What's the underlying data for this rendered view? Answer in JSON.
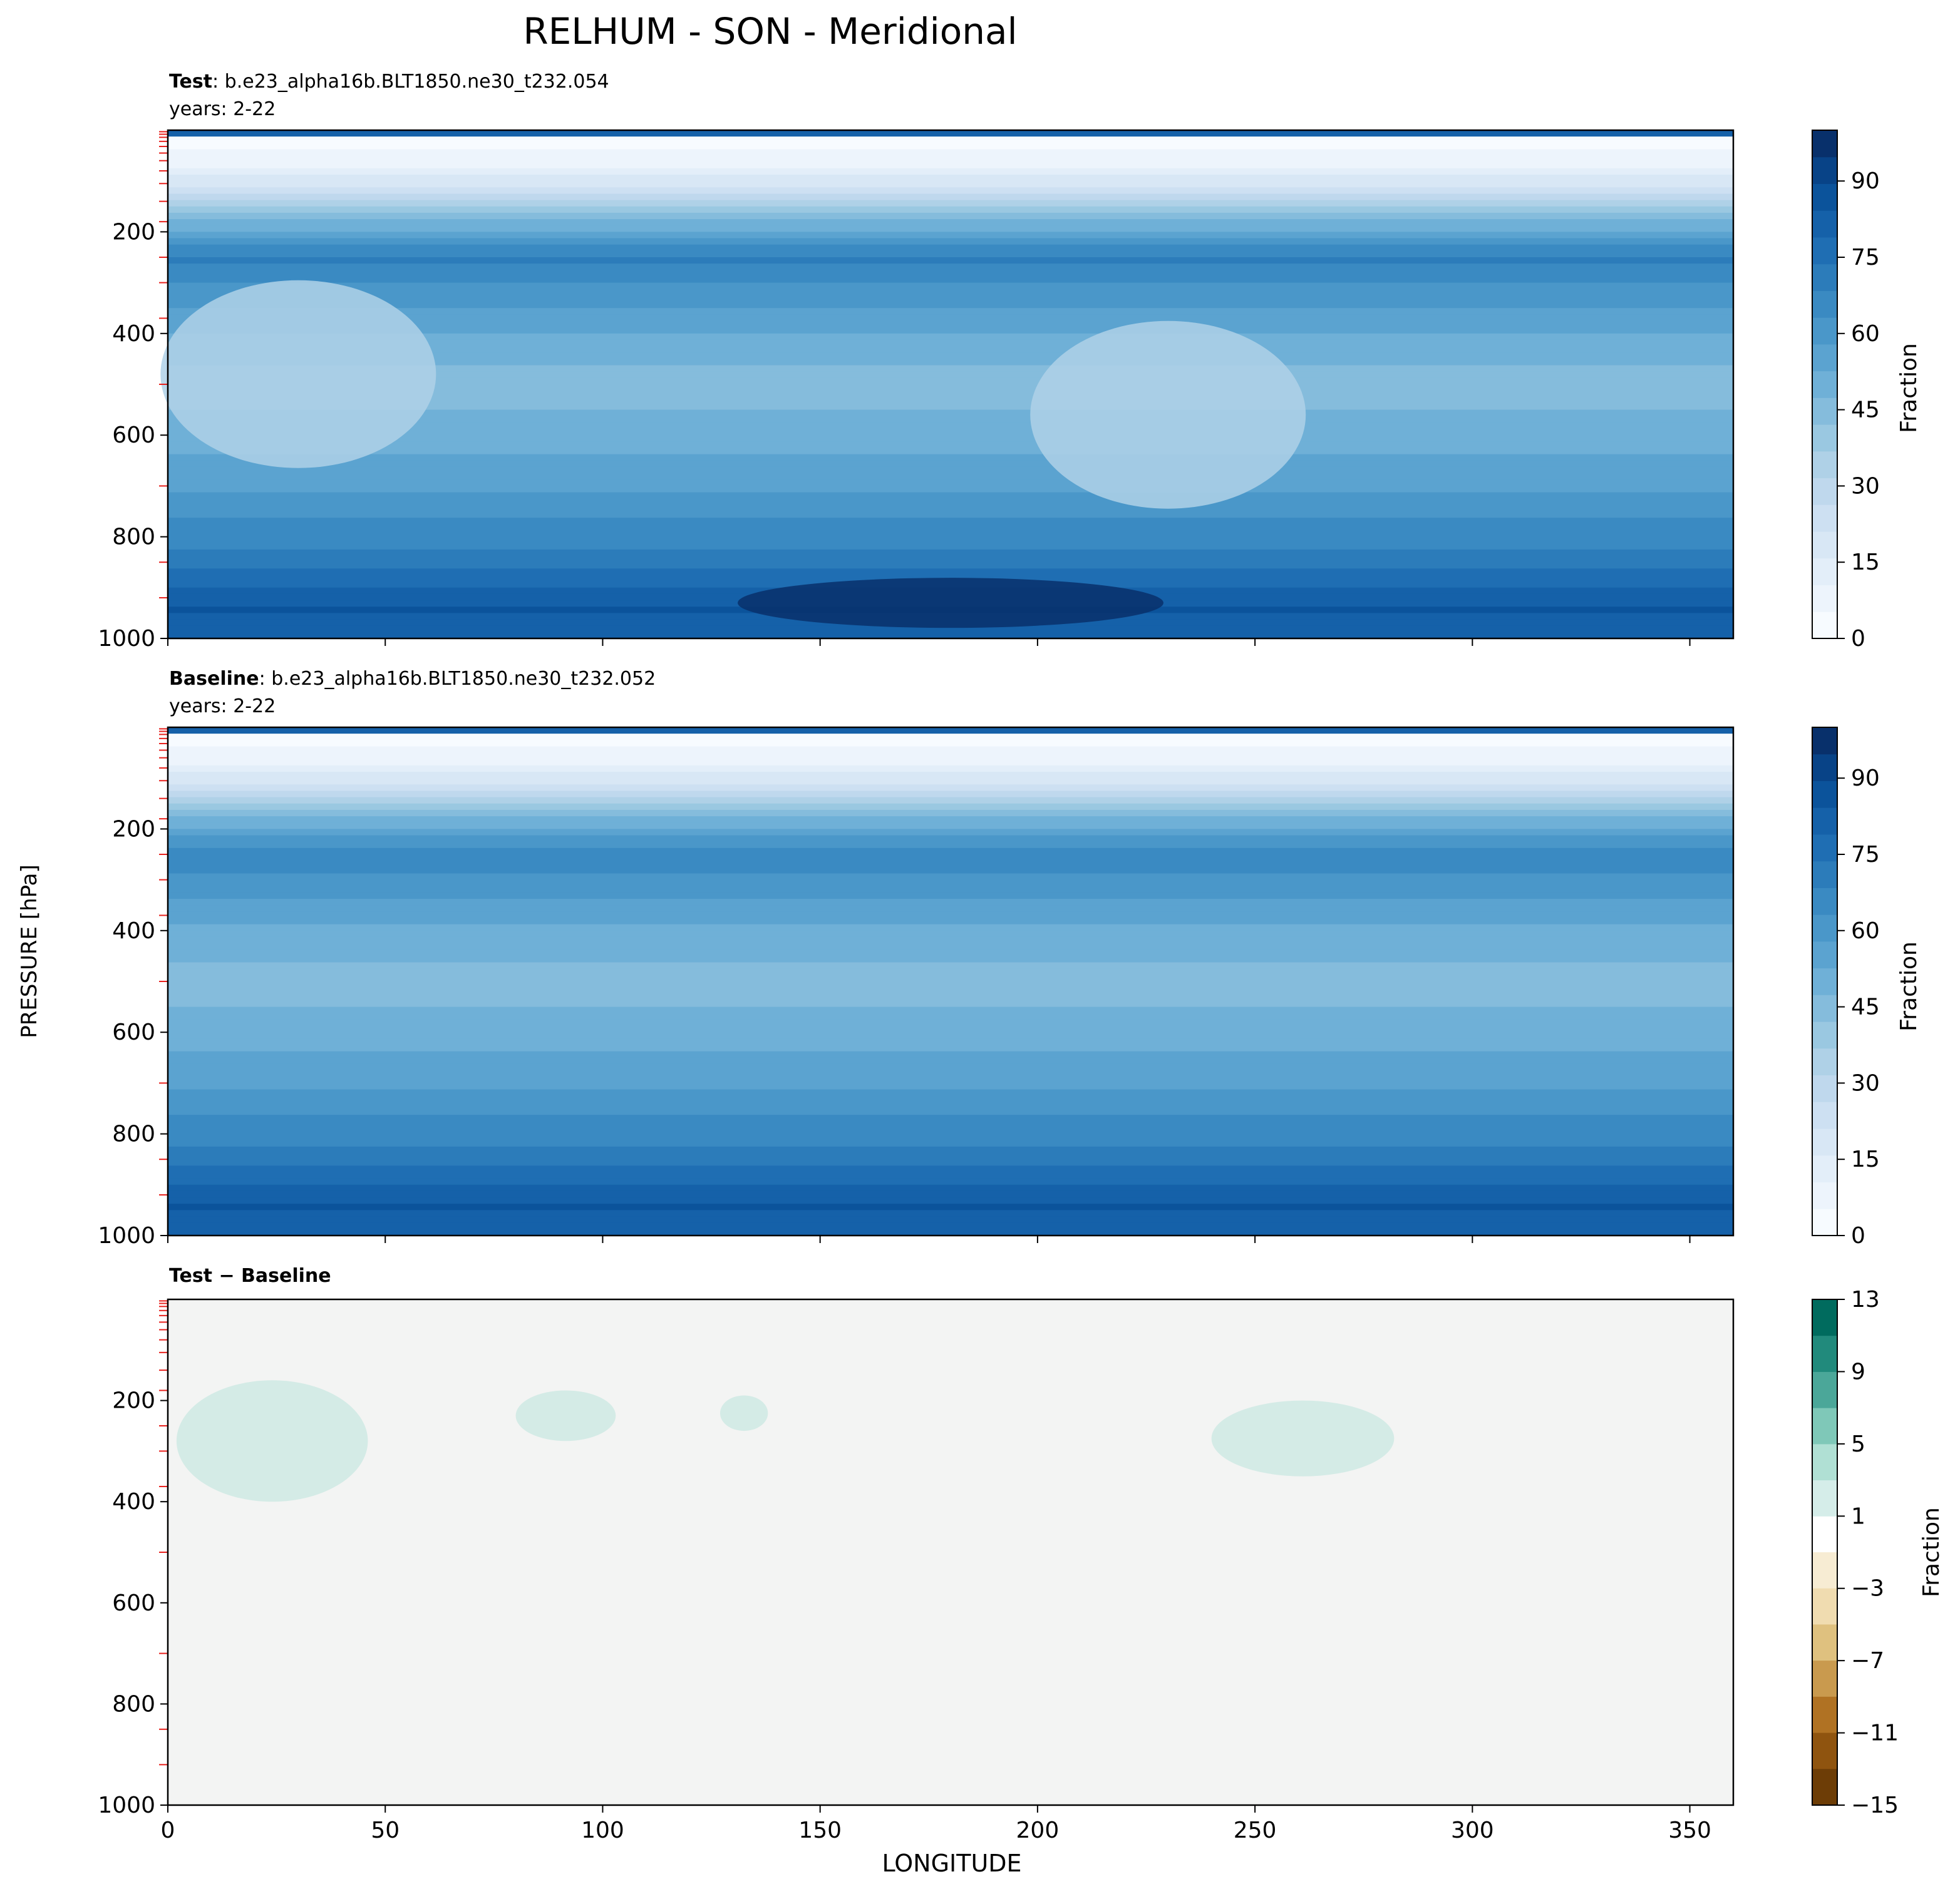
{
  "figure": {
    "title": "RELHUM - SON - Meridional",
    "ylabel": "PRESSURE [hPa]",
    "xlabel": "LONGITUDE"
  },
  "panels": [
    {
      "label_bold": "Test",
      "label_rest": ": b.e23_alpha16b.BLT1850.ne30_t232.054",
      "years": "years: 2-22",
      "colorbar_label": "Fraction",
      "colorbar_ticks": [
        "0",
        "15",
        "30",
        "45",
        "60",
        "75",
        "90"
      ]
    },
    {
      "label_bold": "Baseline",
      "label_rest": ": b.e23_alpha16b.BLT1850.ne30_t232.052",
      "years": "years: 2-22",
      "colorbar_label": "Fraction",
      "colorbar_ticks": [
        "0",
        "15",
        "30",
        "45",
        "60",
        "75",
        "90"
      ]
    },
    {
      "label_bold": "Test − Baseline",
      "colorbar_label": "Fraction",
      "colorbar_ticks": [
        "13",
        "9",
        "5",
        "1",
        "−3",
        "−7",
        "−11",
        "−15"
      ]
    }
  ],
  "colors": {
    "blues": [
      "#f7fbff",
      "#edf4fc",
      "#e3eef9",
      "#d8e7f5",
      "#cde0f2",
      "#bfd8ed",
      "#afd1e7",
      "#9ac8e1",
      "#85bcdc",
      "#6fb0d7",
      "#5ba3d0",
      "#4a97c9",
      "#3a8ac2",
      "#2c7cba",
      "#1f6eb3",
      "#1561a9",
      "#0b539b",
      "#084387",
      "#08306b"
    ],
    "diff": [
      "#f5f5f5",
      "#d5ede9",
      "#b0e0d4",
      "#7fc8b8",
      "#4ba799",
      "#218a7c",
      "#006b5e",
      "#00483c"
    ],
    "diff_neg": [
      "#f7ecd3",
      "#f0dcb0",
      "#dfc17f",
      "#c99a4e",
      "#b07223",
      "#8f540f",
      "#6d3d06",
      "#543005"
    ],
    "diff_background": "#f3f4f3",
    "diff_positive_patch": "#d4ebe6",
    "level_marker": "#e8201c"
  },
  "chart_data": [
    {
      "type": "contour",
      "panel": "Test",
      "variable": "RELHUM",
      "x": {
        "label": "",
        "range": [
          0,
          360
        ],
        "ticks": [
          0,
          50,
          100,
          150,
          200,
          250,
          300,
          350
        ]
      },
      "y": {
        "label": "PRESSURE [hPa]",
        "range": [
          1000,
          0
        ],
        "ticks": [
          200,
          400,
          600,
          800,
          1000
        ],
        "inverted": true
      },
      "colorbar": {
        "label": "Fraction",
        "range": [
          0,
          100
        ],
        "ticks": [
          0,
          15,
          30,
          45,
          60,
          75,
          90
        ]
      },
      "field_profile_by_pressure": [
        {
          "p": 10,
          "v": 1
        },
        {
          "p": 60,
          "v": 8
        },
        {
          "p": 110,
          "v": 22
        },
        {
          "p": 150,
          "v": 35
        },
        {
          "p": 200,
          "v": 55
        },
        {
          "p": 250,
          "v": 70
        },
        {
          "p": 300,
          "v": 63
        },
        {
          "p": 400,
          "v": 52
        },
        {
          "p": 500,
          "v": 45
        },
        {
          "p": 600,
          "v": 50
        },
        {
          "p": 700,
          "v": 57
        },
        {
          "p": 800,
          "v": 66
        },
        {
          "p": 880,
          "v": 75
        },
        {
          "p": 940,
          "v": 85
        },
        {
          "p": 1000,
          "v": 80
        }
      ],
      "features": [
        {
          "lon": 180,
          "p": 930,
          "v": 95,
          "note": "moist maximum near surface"
        },
        {
          "lon": 30,
          "p": 480,
          "v": 35,
          "note": "dry region"
        },
        {
          "lon": 230,
          "p": 560,
          "v": 35,
          "note": "dry region"
        }
      ]
    },
    {
      "type": "contour",
      "panel": "Baseline",
      "variable": "RELHUM",
      "x": {
        "label": "",
        "range": [
          0,
          360
        ],
        "ticks": [
          0,
          50,
          100,
          150,
          200,
          250,
          300,
          350
        ]
      },
      "y": {
        "label": "PRESSURE [hPa]",
        "range": [
          1000,
          0
        ],
        "ticks": [
          200,
          400,
          600,
          800,
          1000
        ],
        "inverted": true
      },
      "colorbar": {
        "label": "Fraction",
        "range": [
          0,
          100
        ],
        "ticks": [
          0,
          15,
          30,
          45,
          60,
          75,
          90
        ]
      },
      "field_profile_by_pressure": [
        {
          "p": 10,
          "v": 1
        },
        {
          "p": 60,
          "v": 8
        },
        {
          "p": 110,
          "v": 22
        },
        {
          "p": 150,
          "v": 35
        },
        {
          "p": 200,
          "v": 55
        },
        {
          "p": 250,
          "v": 68
        },
        {
          "p": 300,
          "v": 62
        },
        {
          "p": 400,
          "v": 52
        },
        {
          "p": 500,
          "v": 45
        },
        {
          "p": 600,
          "v": 50
        },
        {
          "p": 700,
          "v": 57
        },
        {
          "p": 800,
          "v": 66
        },
        {
          "p": 880,
          "v": 75
        },
        {
          "p": 940,
          "v": 85
        },
        {
          "p": 1000,
          "v": 80
        }
      ]
    },
    {
      "type": "contour",
      "panel": "Test − Baseline",
      "x": {
        "label": "LONGITUDE",
        "range": [
          0,
          360
        ],
        "ticks": [
          0,
          50,
          100,
          150,
          200,
          250,
          300,
          350
        ]
      },
      "y": {
        "label": "PRESSURE [hPa]",
        "range": [
          1000,
          0
        ],
        "ticks": [
          200,
          400,
          600,
          800,
          1000
        ],
        "inverted": true
      },
      "colorbar": {
        "label": "Fraction",
        "range": [
          -15,
          13
        ],
        "ticks": [
          13,
          9,
          5,
          1,
          -3,
          -7,
          -11,
          -15
        ]
      },
      "positive_regions": [
        {
          "lon_range": [
            2,
            46
          ],
          "p_range": [
            160,
            400
          ],
          "value_range": [
            1,
            3
          ]
        },
        {
          "lon_range": [
            80,
            103
          ],
          "p_range": [
            180,
            280
          ],
          "value_range": [
            1,
            3
          ]
        },
        {
          "lon_range": [
            127,
            138
          ],
          "p_range": [
            190,
            260
          ],
          "value_range": [
            1,
            3
          ]
        },
        {
          "lon_range": [
            240,
            282
          ],
          "p_range": [
            200,
            350
          ],
          "value_range": [
            1,
            3
          ]
        }
      ]
    }
  ]
}
